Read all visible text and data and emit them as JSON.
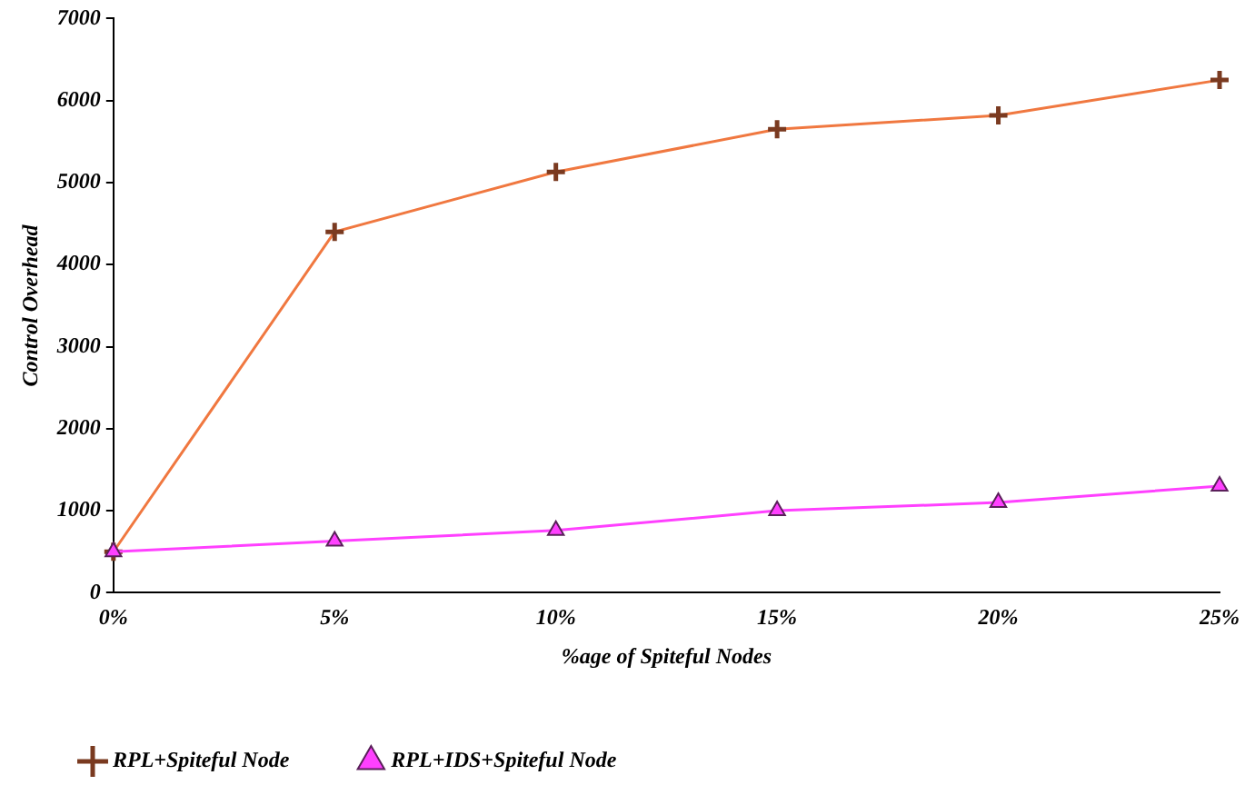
{
  "chart_data": {
    "type": "line",
    "xlabel": "%age of Spiteful Nodes",
    "ylabel": "Control Overhead",
    "categories": [
      "0%",
      "5%",
      "10%",
      "15%",
      "20%",
      "25%"
    ],
    "series": [
      {
        "name": "RPL+Spiteful Node",
        "color": "#f07840",
        "marker": "cross",
        "values": [
          500,
          4400,
          5130,
          5650,
          5820,
          6250
        ]
      },
      {
        "name": "RPL+IDS+Spiteful Node",
        "color": "#ff40ff",
        "marker": "triangle",
        "values": [
          500,
          630,
          760,
          1000,
          1100,
          1300
        ]
      }
    ],
    "ylim": [
      0,
      7000
    ],
    "yticks": [
      0,
      1000,
      2000,
      3000,
      4000,
      5000,
      6000,
      7000
    ],
    "grid": false,
    "legend": "bottom left",
    "line_style": "solid"
  }
}
